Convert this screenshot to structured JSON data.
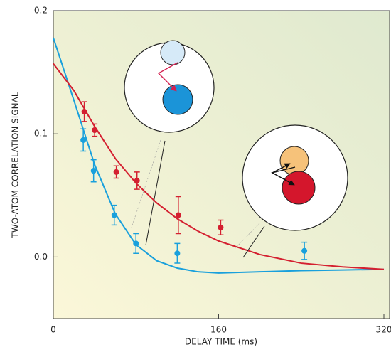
{
  "chart_data": {
    "type": "scatter",
    "xlabel": "DELAY TIME (ms)",
    "ylabel": "TWO-ATOM CORRELATION SIGNAL",
    "xlim": [
      0,
      320
    ],
    "ylim": [
      -0.05,
      0.2
    ],
    "xticks": [
      0,
      160,
      320
    ],
    "yticks": [
      {
        "value": 0,
        "label": "0.0"
      },
      0.1,
      0.2
    ],
    "series": [
      {
        "color": "#19a0dc",
        "x": [
          29,
          39,
          59,
          80,
          120,
          243
        ],
        "values": [
          0.095,
          0.07,
          0.034,
          0.011,
          0.003,
          0.005
        ],
        "errors": [
          0.009,
          0.009,
          0.008,
          0.008,
          0.008,
          0.007
        ]
      },
      {
        "color": "#d42030",
        "x": [
          30,
          40,
          61,
          81,
          121,
          162
        ],
        "values": [
          0.118,
          0.103,
          0.069,
          0.062,
          0.034,
          0.024
        ],
        "errors": [
          0.008,
          0.005,
          0.005,
          0.007,
          0.015,
          0.006
        ]
      }
    ],
    "fits": [
      {
        "color": "#19a0dc",
        "x": [
          0,
          20,
          40,
          60,
          80,
          100,
          120,
          140,
          160,
          200,
          240,
          280,
          320
        ],
        "values": [
          0.178,
          0.127,
          0.075,
          0.035,
          0.01,
          -0.003,
          -0.009,
          -0.012,
          -0.013,
          -0.012,
          -0.011,
          -0.0105,
          -0.01
        ]
      },
      {
        "color": "#d42030",
        "x": [
          0,
          20,
          40,
          60,
          80,
          100,
          120,
          140,
          160,
          200,
          240,
          280,
          320
        ],
        "values": [
          0.157,
          0.135,
          0.106,
          0.08,
          0.06,
          0.044,
          0.031,
          0.021,
          0.013,
          0.002,
          -0.005,
          -0.008,
          -0.01
        ]
      }
    ]
  }
}
